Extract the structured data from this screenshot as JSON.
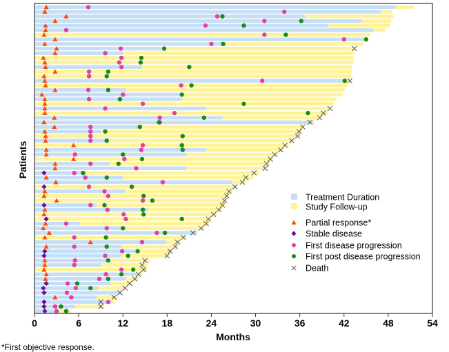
{
  "chart_data": {
    "type": "swimmer",
    "title": "",
    "xlabel": "Months",
    "ylabel": "Patients",
    "xlim": [
      0,
      54
    ],
    "xticks": [
      0,
      6,
      12,
      18,
      24,
      30,
      36,
      42,
      48,
      54
    ],
    "xtick_labels": [
      "0",
      "6",
      "12",
      "18",
      "24",
      "30",
      "36",
      "42",
      "48",
      "54"
    ],
    "grid": false,
    "legend_position": "right",
    "colors": {
      "treatment": "#c6dff8",
      "followup": "#fff39a",
      "partial_response": "#ff4a00",
      "stable_disease": "#6a0a9e",
      "first_progression": "#e040a8",
      "post_progression": "#1a8a1a",
      "death": "#555555"
    },
    "legend": [
      {
        "key": "treatment",
        "label": "Treatment Duration",
        "shape": "square"
      },
      {
        "key": "followup",
        "label": "Study Follow-up",
        "shape": "square"
      },
      {
        "key": "partial_response",
        "label": "Partial response*",
        "shape": "triangle"
      },
      {
        "key": "stable_disease",
        "label": "Stable disease",
        "shape": "diamond"
      },
      {
        "key": "first_progression",
        "label": "First disease progression",
        "shape": "circle"
      },
      {
        "key": "post_progression",
        "label": "First post disease progression",
        "shape": "circle"
      },
      {
        "key": "death",
        "label": "Death",
        "shape": "x"
      }
    ],
    "footnote": "*First objective response.",
    "patients": [
      {
        "tx": 49.0,
        "fu": 51.5,
        "pr": 1.6,
        "pd": 7.3
      },
      {
        "tx": 47.0,
        "fu": 48.6,
        "pr": 1.4,
        "pd": 33.9
      },
      {
        "tx": 36.7,
        "fu": 48.7,
        "pr": 4.3,
        "pd": 24.8,
        "ppd": 25.5
      },
      {
        "tx": 44.4,
        "fu": 48.4,
        "pr": 2.8,
        "pd": 31.2,
        "ppd": 36.2
      },
      {
        "tx": 39.9,
        "fu": 48.2,
        "pr": 1.5,
        "pd": 23.2,
        "ppd": 28.4
      },
      {
        "tx": 46.0,
        "fu": 47.6,
        "pr": 1.5,
        "pd": 4.3
      },
      {
        "tx": 0,
        "fu": 45.6,
        "pr": 1.3,
        "pd": 31.2,
        "ppd": 34.1
      },
      {
        "tx": 44.7,
        "fu": 44.8,
        "pr": 2.8,
        "pd": 42.0,
        "ppd": 45.0
      },
      {
        "tx": 26.0,
        "fu": 44.6,
        "pr": 1.4,
        "pd": 24.0,
        "ppd": 25.6
      },
      {
        "tx": 17.2,
        "fu": 43.7,
        "pr": 3.0,
        "pd": 11.7,
        "ppd": 17.6,
        "death": 43.4
      },
      {
        "tx": 12.0,
        "fu": 43.4,
        "pr": 2.8,
        "pd": 9.6
      },
      {
        "tx": 0,
        "fu": 43.4,
        "pr": 1.2,
        "pd": 11.8,
        "ppd": 14.5
      },
      {
        "tx": 0,
        "fu": 43.3,
        "pr": 1.4,
        "pd": 11.5,
        "ppd": 14.4
      },
      {
        "tx": 14.6,
        "fu": 43.1,
        "pr": 1.5,
        "pd": 11.8,
        "ppd": 21.0
      },
      {
        "tx": 0,
        "fu": 43.0,
        "pr": 2.8,
        "pd": 7.4,
        "ppd": 10.0
      },
      {
        "tx": 0,
        "fu": 43.0,
        "pr": 1.3,
        "pd": 7.4,
        "ppd": 9.8
      },
      {
        "tx": 42.0,
        "fu": 42.9,
        "pr": 1.4,
        "pd": 30.9,
        "ppd": 42.1,
        "death": 42.8
      },
      {
        "tx": 0,
        "fu": 42.4,
        "pr": 1.5,
        "pd": 19.9,
        "ppd": 21.3
      },
      {
        "tx": 12.4,
        "fu": 42.1,
        "pr": 2.8,
        "pd": 7.3,
        "ppd": 10.0
      },
      {
        "tx": 20.0,
        "fu": 41.8,
        "pr": 1.0,
        "pd": 12.0,
        "ppd": 20.0
      },
      {
        "tx": 20.0,
        "fu": 41.0,
        "pr": 1.4,
        "pd": 7.4,
        "ppd": 11.6
      },
      {
        "tx": 0,
        "fu": 40.6,
        "pr": 1.4,
        "pd": 14.7,
        "ppd": 28.4
      },
      {
        "tx": 23.3,
        "fu": 40.2,
        "pr": 1.4,
        "pd": 9.6,
        "death": 40.1
      },
      {
        "tx": 0,
        "fu": 39.8,
        "pr": 1.4,
        "pd": 19.0,
        "ppd": 37.1,
        "death": 39.2
      },
      {
        "tx": 25.5,
        "fu": 38.9,
        "pr": 2.7,
        "pd": 17.0,
        "ppd": 23.0,
        "death": 38.7
      },
      {
        "tx": 37.5,
        "fu": 38.0,
        "pr": 1.3,
        "pd": 17.0,
        "ppd": 16.9,
        "death": 37.4
      },
      {
        "tx": 14.3,
        "fu": 36.6,
        "pr": 2.7,
        "pd": 7.6,
        "ppd": 14.3,
        "death": 36.4
      },
      {
        "tx": 9.1,
        "fu": 36.2,
        "pr": 1.4,
        "pd": 7.6,
        "ppd": 9.6,
        "death": 35.9
      },
      {
        "tx": 0,
        "fu": 36.0,
        "pr": 1.5,
        "pd": 7.6,
        "ppd": 20.1,
        "death": 35.7
      },
      {
        "tx": 10.1,
        "fu": 35.0,
        "pr": 1.5,
        "pd": 7.6,
        "ppd": 9.8,
        "death": 34.9
      },
      {
        "tx": 0,
        "fu": 34.5,
        "pr": 5.3,
        "pd": 14.7,
        "ppd": 20.0,
        "death": 34.0
      },
      {
        "tx": 23.3,
        "fu": 33.7,
        "pr": 1.6,
        "pd": 14.5,
        "ppd": 20.1,
        "death": 33.4
      },
      {
        "tx": 20.6,
        "fu": 33.0,
        "pr": 1.6,
        "pd": 5.5,
        "ppd": 12.0,
        "death": 32.6
      },
      {
        "tx": 0,
        "fu": 32.3,
        "pr": 5.3,
        "pd": 12.2,
        "ppd": 14.6,
        "death": 32.0
      },
      {
        "tx": 10.1,
        "fu": 31.8,
        "pr": 2.8,
        "pd": 7.6,
        "ppd": 11.4,
        "death": 31.5
      },
      {
        "tx": 20.6,
        "fu": 31.2,
        "pr": 2.8,
        "pd": 13.8,
        "death": 31.3
      },
      {
        "tx": 6.7,
        "fu": 30.5,
        "sd": 1.3,
        "pd": 5.4,
        "ppd": 6.6,
        "death": 29.8
      },
      {
        "tx": 12.0,
        "fu": 29.7,
        "pr": 1.6,
        "pd": 6.9,
        "ppd": 9.8,
        "death": 28.7
      },
      {
        "tx": 26.8,
        "fu": 28.6,
        "pr": 2.9,
        "pd": 17.4,
        "death": 28.2
      },
      {
        "tx": 0,
        "fu": 27.4,
        "sd": 1.3,
        "pd": 7.4,
        "ppd": 13.2,
        "death": 27.2
      },
      {
        "tx": 12.3,
        "fu": 26.8,
        "pr": 1.4,
        "pd": 9.5,
        "death": 26.4
      },
      {
        "tx": 0,
        "fu": 26.3,
        "pr": 1.3,
        "pd": 10.0,
        "ppd": 14.8,
        "death": 26.1
      },
      {
        "tx": 0,
        "fu": 26.1,
        "pr": 3.0,
        "pd": 14.7,
        "ppd": 16.0,
        "death": 25.8
      },
      {
        "tx": 8.4,
        "fu": 25.8,
        "sd": 1.3,
        "pd": 7.6,
        "ppd": 9.5,
        "death": 25.5
      },
      {
        "tx": 15.4,
        "fu": 25.4,
        "pr": 1.4,
        "pd": 9.9,
        "ppd": 14.7,
        "death": 25.0
      },
      {
        "tx": 0,
        "fu": 24.7,
        "pr": 1.3,
        "pd": 12.1,
        "ppd": 14.8,
        "death": 24.3
      },
      {
        "tx": 0,
        "fu": 24.0,
        "sd": 1.6,
        "pd": 12.4,
        "ppd": 20.0,
        "death": 23.6
      },
      {
        "tx": 6.1,
        "fu": 23.6,
        "pr": 1.5,
        "pd": 4.3,
        "death": 23.3
      },
      {
        "tx": 12.2,
        "fu": 23.0,
        "pr": 1.2,
        "pd": 9.8,
        "ppd": 12.0,
        "death": 22.6
      },
      {
        "tx": 22.1,
        "fu": 22.0,
        "pr": 2.0,
        "pd": 16.6,
        "ppd": 17.7,
        "death": 21.5
      },
      {
        "tx": 0,
        "fu": 20.6,
        "pr": 1.4,
        "pd": 5.4,
        "ppd": 9.7,
        "death": 20.2
      },
      {
        "tx": 17.9,
        "fu": 19.9,
        "pr": 7.6,
        "pd": 14.6,
        "death": 19.4
      },
      {
        "tx": 11.8,
        "fu": 19.4,
        "pr": 1.6,
        "pd": 5.4,
        "ppd": 9.8,
        "death": 19.1
      },
      {
        "tx": 14.2,
        "fu": 18.7,
        "sd": 1.4,
        "pd": 11.9,
        "ppd": 14.0,
        "death": 18.4
      },
      {
        "tx": 11.8,
        "fu": 18.1,
        "sd": 1.3,
        "pd": 9.6,
        "ppd": 12.7,
        "death": 18.0
      },
      {
        "tx": 10.0,
        "fu": 15.7,
        "pr": 1.4,
        "pd": 5.5,
        "ppd": 10.0,
        "death": 15.0
      },
      {
        "tx": 9.0,
        "fu": 15.4,
        "pr": 1.4,
        "pd": 5.4,
        "death": 14.6
      },
      {
        "tx": 0,
        "fu": 15.3,
        "pr": 1.3,
        "pd": 11.8,
        "ppd": 13.4,
        "death": 14.8
      },
      {
        "tx": 13.8,
        "fu": 14.6,
        "pr": 1.6,
        "pd": 9.7,
        "ppd": 11.8,
        "death": 14.1
      },
      {
        "tx": 12.4,
        "fu": 14.1,
        "pr": 1.5,
        "pd": 8.8,
        "ppd": 10.0,
        "death": 13.6
      },
      {
        "tx": 10.3,
        "fu": 13.3,
        "sd": 1.6,
        "pd": 4.5,
        "ppd": 5.8,
        "death": 12.9
      },
      {
        "tx": 8.6,
        "fu": 12.2,
        "sd": 1.2,
        "pd": 5.6,
        "ppd": 7.6,
        "death": 12.3
      },
      {
        "tx": 11.8,
        "fu": 11.8,
        "sd": 1.3,
        "pd": 4.4,
        "death": 11.6
      },
      {
        "tx": 8.4,
        "fu": 11.3,
        "pr": 2.8,
        "pd": 5.0,
        "death": 10.8
      },
      {
        "tx": 10.4,
        "fu": 10.9,
        "sd": 1.3,
        "pd": 10.0,
        "death": 9.0
      },
      {
        "tx": 5.5,
        "fu": 9.5,
        "sd": 1.3,
        "pd": 2.8,
        "ppd": 3.6,
        "death": 9.0
      },
      {
        "tx": 3.1,
        "fu": 5.0,
        "sd": 1.4,
        "pd": 3.0,
        "ppd": 4.3
      }
    ]
  }
}
